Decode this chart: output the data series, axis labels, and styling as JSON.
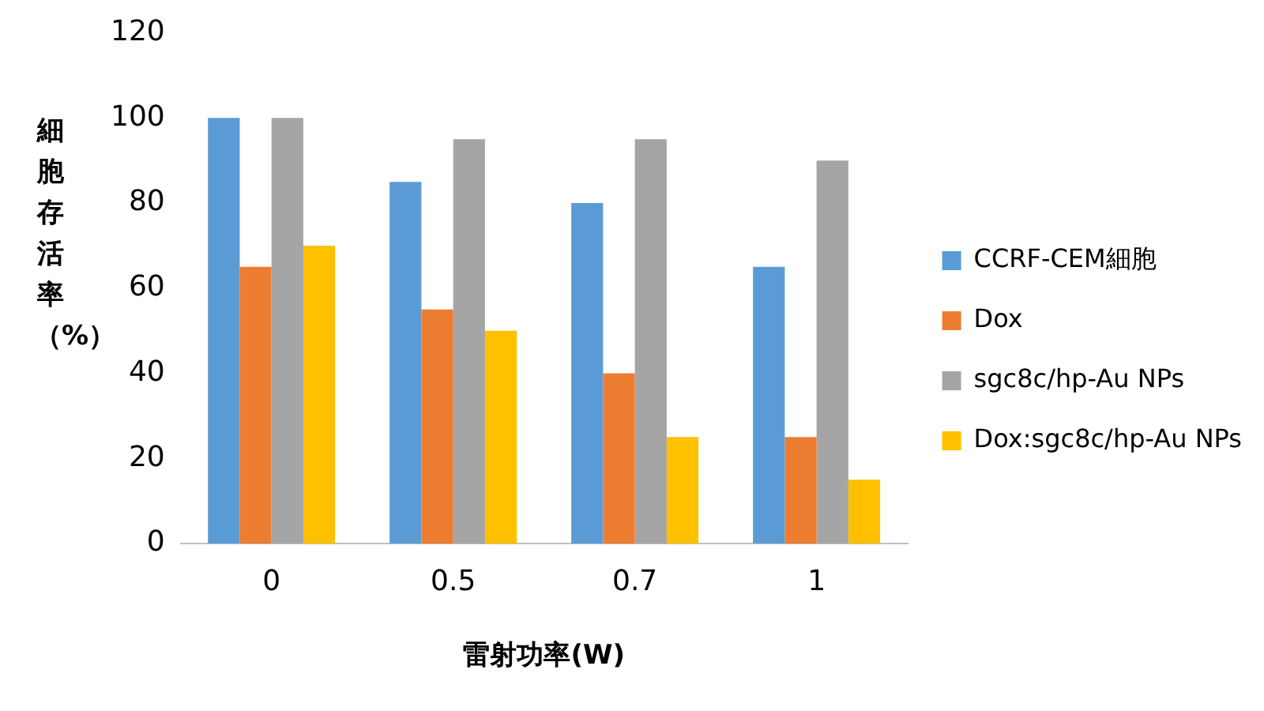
{
  "chart_data": {
    "type": "bar",
    "xlabel": "雷射功率(W)",
    "ylabel": "細胞存活率（%）",
    "categories": [
      "0",
      "0.5",
      "0.7",
      "1"
    ],
    "series": [
      {
        "name": "CCRF-CEM細胞",
        "color": "#5b9bd5",
        "values": [
          100,
          85,
          80,
          65
        ]
      },
      {
        "name": "Dox",
        "color": "#ed7d31",
        "values": [
          65,
          55,
          40,
          25
        ]
      },
      {
        "name": "sgc8c/hp-Au NPs",
        "color": "#a5a5a5",
        "values": [
          100,
          95,
          95,
          90
        ]
      },
      {
        "name": "Dox:sgc8c/hp-Au NPs",
        "color": "#ffc000",
        "values": [
          70,
          50,
          25,
          15
        ]
      }
    ],
    "ylim": [
      0,
      120
    ],
    "yticks": [
      0,
      20,
      40,
      60,
      80,
      100,
      120
    ],
    "grid": false,
    "legend": "right"
  }
}
